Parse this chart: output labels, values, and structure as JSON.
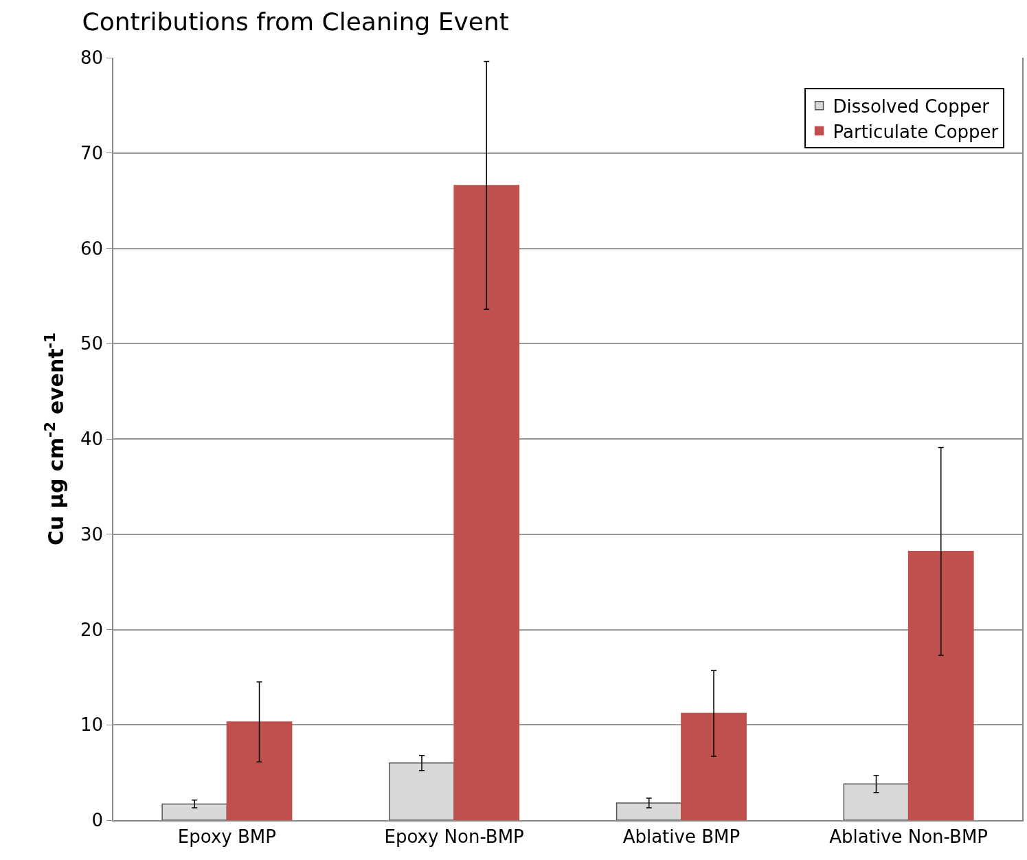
{
  "chart_data": {
    "type": "bar",
    "title": "Contributions from Cleaning Event",
    "ylabel": "Cu µg cm$^{-2}$ event$^{-1}$",
    "categories": [
      "Epoxy BMP",
      "Epoxy Non-BMP",
      "Ablative BMP",
      "Ablative Non-BMP"
    ],
    "series": [
      {
        "name": "Dissolved Copper",
        "color": "#d9d9d9",
        "values": [
          1.7,
          6.0,
          1.8,
          3.8
        ],
        "errors": [
          0.4,
          0.8,
          0.5,
          0.9
        ]
      },
      {
        "name": "Particulate Copper",
        "color": "#c0504d",
        "values": [
          10.3,
          66.6,
          11.2,
          28.2
        ],
        "errors": [
          4.2,
          13.0,
          4.5,
          10.9
        ]
      }
    ],
    "ylim": [
      0,
      80
    ],
    "yticks": [
      0,
      10,
      20,
      30,
      40,
      50,
      60,
      70,
      80
    ],
    "grid": "y",
    "legend": "top right"
  }
}
